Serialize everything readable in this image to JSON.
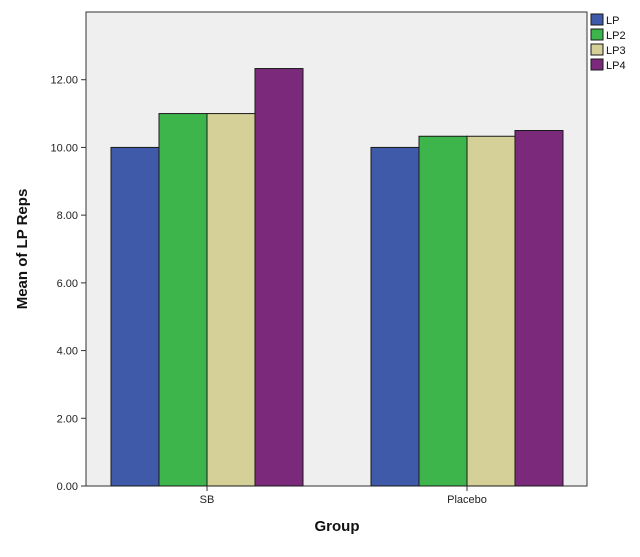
{
  "chart_data": {
    "type": "bar",
    "title": "",
    "xlabel": "Group",
    "ylabel": "Mean of LP Reps",
    "categories": [
      "SB",
      "Placebo"
    ],
    "series": [
      {
        "name": "LP",
        "values": [
          10.0,
          10.0
        ],
        "color": "#3f5aa8"
      },
      {
        "name": "LP2",
        "values": [
          11.0,
          10.33
        ],
        "color": "#3db54a"
      },
      {
        "name": "LP3",
        "values": [
          11.0,
          10.33
        ],
        "color": "#d5cf98"
      },
      {
        "name": "LP4",
        "values": [
          12.33,
          10.5
        ],
        "color": "#7b2a7b"
      }
    ],
    "ylim": [
      0,
      14
    ],
    "yticks": [
      "0.00",
      "2.00",
      "4.00",
      "6.00",
      "8.00",
      "10.00",
      "12.00"
    ],
    "ytick_values": [
      0,
      2,
      4,
      6,
      8,
      10,
      12
    ],
    "grid": false,
    "legend_position": "top-right",
    "plot_background": "#efefef"
  }
}
